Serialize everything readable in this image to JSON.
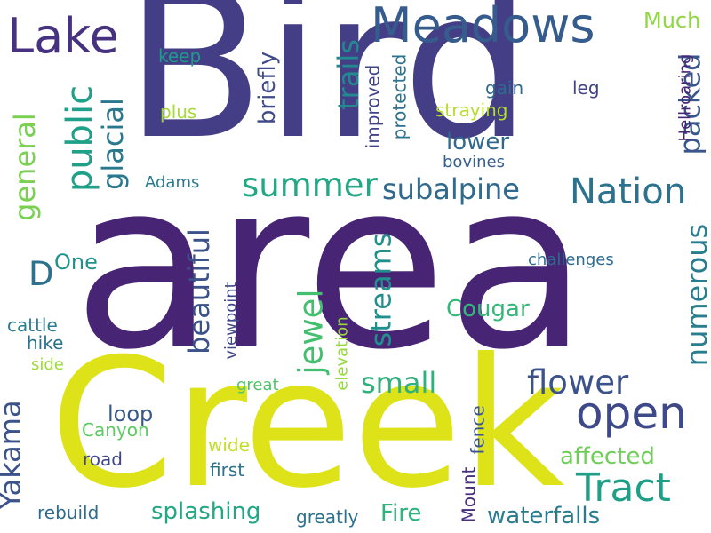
{
  "words": [
    {
      "text": "Bird",
      "color": "#433e85"
    },
    {
      "text": "area",
      "color": "#482475"
    },
    {
      "text": "Creek",
      "color": "#dde318"
    },
    {
      "text": "Meadows",
      "color": "#365c8d"
    },
    {
      "text": "Lake",
      "color": "#46327e"
    },
    {
      "text": "Nation",
      "color": "#2c728e"
    },
    {
      "text": "subalpine",
      "color": "#306a8e"
    },
    {
      "text": "summer",
      "color": "#22a884"
    },
    {
      "text": "open",
      "color": "#3e4989"
    },
    {
      "text": "Tract",
      "color": "#1f9f88"
    },
    {
      "text": "public",
      "color": "#1fa088"
    },
    {
      "text": "beautiful",
      "color": "#3b528b"
    },
    {
      "text": "packed",
      "color": "#39568c"
    },
    {
      "text": "numerous",
      "color": "#287d8e"
    },
    {
      "text": "streams",
      "color": "#21908d"
    },
    {
      "text": "jewel",
      "color": "#44bf70"
    },
    {
      "text": "flower",
      "color": "#3b528b"
    },
    {
      "text": "glacial",
      "color": "#2a788e"
    },
    {
      "text": "general",
      "color": "#7ad151"
    },
    {
      "text": "Much",
      "color": "#8fd744"
    },
    {
      "text": "trails",
      "color": "#23898e"
    },
    {
      "text": "lower",
      "color": "#31688e"
    },
    {
      "text": "small",
      "color": "#2db27d"
    },
    {
      "text": "Yakama",
      "color": "#3b528b"
    },
    {
      "text": "waterfalls",
      "color": "#287c8e"
    },
    {
      "text": "splashing",
      "color": "#22a884"
    },
    {
      "text": "Fire",
      "color": "#2eb37c"
    },
    {
      "text": "affected",
      "color": "#6ece58"
    },
    {
      "text": "Cougar",
      "color": "#35b779"
    },
    {
      "text": "D",
      "color": "#2c718e"
    },
    {
      "text": "briefly",
      "color": "#3e4a89"
    },
    {
      "text": "keep",
      "color": "#1f9a8a"
    },
    {
      "text": "plus",
      "color": "#a5db36"
    },
    {
      "text": "gain",
      "color": "#30698e"
    },
    {
      "text": "leg",
      "color": "#404387"
    },
    {
      "text": "straying",
      "color": "#b5de2b"
    },
    {
      "text": "improved",
      "color": "#414487"
    },
    {
      "text": "protected",
      "color": "#2c738e"
    },
    {
      "text": "bovines",
      "color": "#355f8d"
    },
    {
      "text": "Hellroaring",
      "color": "#482677"
    },
    {
      "text": "Adams",
      "color": "#2a788e"
    },
    {
      "text": "One",
      "color": "#20928c"
    },
    {
      "text": "challenges",
      "color": "#2f6b8e"
    },
    {
      "text": "loop",
      "color": "#38588c"
    },
    {
      "text": "cattle",
      "color": "#287d8e"
    },
    {
      "text": "hike",
      "color": "#2c728e"
    },
    {
      "text": "side",
      "color": "#9dd93b"
    },
    {
      "text": "viewpoint",
      "color": "#3f4788"
    },
    {
      "text": "great",
      "color": "#50c46a"
    },
    {
      "text": "elevation",
      "color": "#95d840"
    },
    {
      "text": "Canyon",
      "color": "#5ec962"
    },
    {
      "text": "wide",
      "color": "#c2df23"
    },
    {
      "text": "first",
      "color": "#2c728e"
    },
    {
      "text": "road",
      "color": "#3f4788"
    },
    {
      "text": "fence",
      "color": "#3a548c"
    },
    {
      "text": "Mount",
      "color": "#472f7d"
    },
    {
      "text": "rebuild",
      "color": "#2f6c8e"
    },
    {
      "text": "greatly",
      "color": "#2d708e"
    }
  ]
}
